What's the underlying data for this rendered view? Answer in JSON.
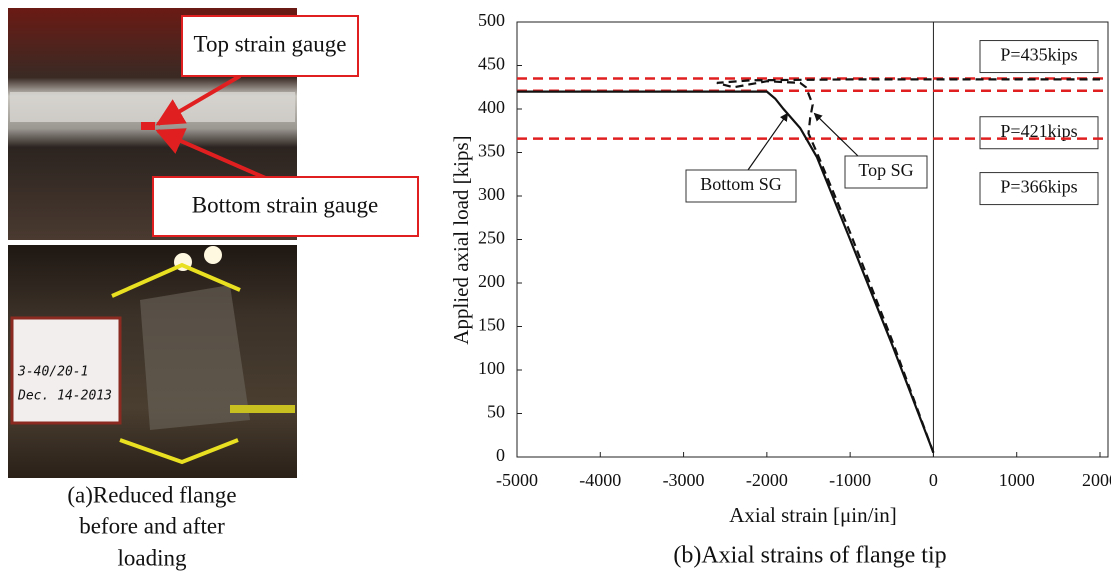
{
  "panel_a": {
    "labels": [
      "Top strain gauge",
      "Bottom strain gauge"
    ],
    "photo_note": [
      "3-40/20-1",
      "Dec. 14-2013"
    ],
    "caption": [
      "(a)Reduced flange",
      "before and after",
      "loading"
    ]
  },
  "chart_data": {
    "type": "line",
    "caption": "(b)Axial strains of flange tip",
    "x_label": "Axial strain [μin/in]",
    "y_label": "Applied axial load [kips]",
    "xlim": [
      -5000,
      2000
    ],
    "ylim": [
      0,
      500
    ],
    "xticks": [
      -5000,
      -4000,
      -3000,
      -2000,
      -1000,
      0,
      1000,
      2000
    ],
    "yticks": [
      0,
      50,
      100,
      150,
      200,
      250,
      300,
      350,
      400,
      450,
      500
    ],
    "zero_line": true,
    "series": [
      {
        "name": "Bottom SG",
        "color": "#111111",
        "line_style": "solid",
        "x": [
          0,
          -500,
          -1000,
          -1400,
          -1600,
          -1800,
          -1900,
          -2000,
          -3000,
          -4000,
          -5000
        ],
        "values": [
          5,
          130,
          250,
          345,
          378,
          400,
          412,
          420,
          420,
          420,
          420
        ]
      },
      {
        "name": "Top SG",
        "color": "#111111",
        "line_style": "dashed",
        "x": [
          0,
          -500,
          -1000,
          -1400,
          -1500,
          -1480,
          -1450,
          -1530,
          -1600,
          -2000,
          -2400,
          -2600,
          -2200,
          -1000,
          0,
          1000,
          2000
        ],
        "values": [
          5,
          135,
          258,
          350,
          372,
          390,
          405,
          425,
          430,
          432,
          425,
          430,
          433,
          434,
          434,
          434,
          434
        ]
      }
    ],
    "reference_color": "#e02020",
    "reference_lines": [
      {
        "value": 435,
        "label": "P=435kips"
      },
      {
        "value": 421,
        "label": "P=421kips"
      },
      {
        "value": 366,
        "label": "P=366kips"
      }
    ]
  }
}
